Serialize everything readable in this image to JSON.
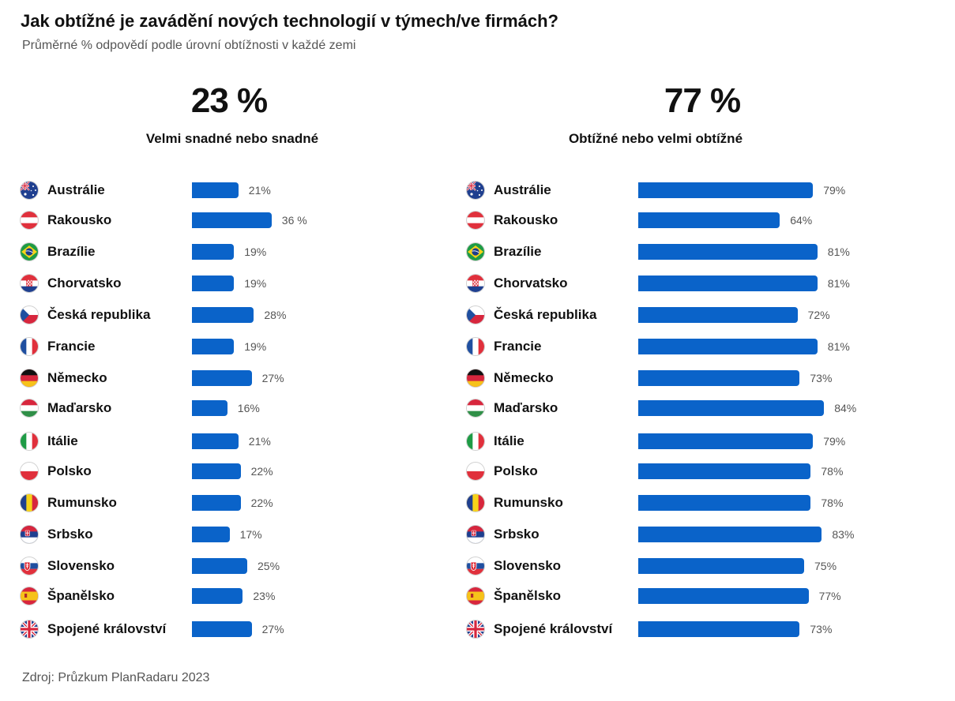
{
  "title": "Jak obtížné je zavádění nových technologií v týmech/ve firmách?",
  "subtitle": "Průměrné % odpovědí podle úrovní obtížnosti v každé zemi",
  "source": "Zdroj: Průzkum PlanRadaru 2023",
  "colors": {
    "bar": "#0a63c9",
    "text": "#111111",
    "muted": "#555555"
  },
  "countries": [
    {
      "name": "Austrálie",
      "flag_icon": "australia-flag-icon"
    },
    {
      "name": "Rakousko",
      "flag_icon": "austria-flag-icon"
    },
    {
      "name": "Brazílie",
      "flag_icon": "brazil-flag-icon"
    },
    {
      "name": "Chorvatsko",
      "flag_icon": "croatia-flag-icon"
    },
    {
      "name": "Česká republika",
      "flag_icon": "czechia-flag-icon"
    },
    {
      "name": "Francie",
      "flag_icon": "france-flag-icon"
    },
    {
      "name": "Německo",
      "flag_icon": "germany-flag-icon"
    },
    {
      "name": "Maďarsko",
      "flag_icon": "hungary-flag-icon"
    },
    {
      "name": "Itálie",
      "flag_icon": "italy-flag-icon"
    },
    {
      "name": "Polsko",
      "flag_icon": "poland-flag-icon"
    },
    {
      "name": "Rumunsko",
      "flag_icon": "romania-flag-icon"
    },
    {
      "name": "Srbsko",
      "flag_icon": "serbia-flag-icon"
    },
    {
      "name": "Slovensko",
      "flag_icon": "slovakia-flag-icon"
    },
    {
      "name": "Španělsko",
      "flag_icon": "spain-flag-icon"
    },
    {
      "name": "Spojené království",
      "flag_icon": "uk-flag-icon"
    }
  ],
  "chart_data": [
    {
      "type": "bar",
      "orientation": "horizontal",
      "headline": "23 %",
      "caption": "Velmi snadné nebo snadné",
      "categories": [
        "Austrálie",
        "Rakousko",
        "Brazílie",
        "Chorvatsko",
        "Česká republika",
        "Francie",
        "Německo",
        "Maďarsko",
        "Itálie",
        "Polsko",
        "Rumunsko",
        "Srbsko",
        "Slovensko",
        "Španělsko",
        "Spojené království"
      ],
      "values": [
        21,
        36,
        19,
        19,
        28,
        19,
        27,
        16,
        21,
        22,
        22,
        17,
        25,
        23,
        27
      ],
      "labels": [
        "21%",
        "36 %",
        "19%",
        "19%",
        "28%",
        "19%",
        "27%",
        "16%",
        "21%",
        "22%",
        "22%",
        "17%",
        "25%",
        "23%",
        "27%"
      ],
      "xlim": [
        0,
        100
      ]
    },
    {
      "type": "bar",
      "orientation": "horizontal",
      "headline": "77 %",
      "caption": "Obtížné nebo velmi obtížné",
      "categories": [
        "Austrálie",
        "Rakousko",
        "Brazílie",
        "Chorvatsko",
        "Česká republika",
        "Francie",
        "Německo",
        "Maďarsko",
        "Itálie",
        "Polsko",
        "Rumunsko",
        "Srbsko",
        "Slovensko",
        "Španělsko",
        "Spojené království"
      ],
      "values": [
        79,
        64,
        81,
        81,
        72,
        81,
        73,
        84,
        79,
        78,
        78,
        83,
        75,
        77,
        73
      ],
      "labels": [
        "79%",
        "64%",
        "81%",
        "81%",
        "72%",
        "81%",
        "73%",
        "84%",
        "79%",
        "78%",
        "78%",
        "83%",
        "75%",
        "77%",
        "73%"
      ],
      "xlim": [
        0,
        100
      ]
    }
  ]
}
